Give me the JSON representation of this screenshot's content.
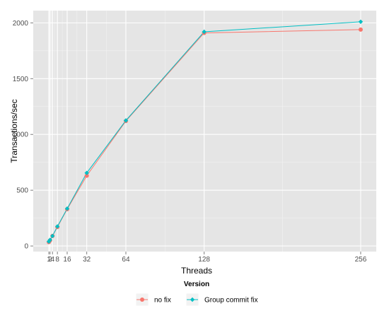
{
  "chart_data": {
    "type": "line",
    "title": "",
    "xlabel": "Threads",
    "ylabel": "Transactions/sec",
    "x": [
      1,
      2,
      4,
      8,
      16,
      32,
      64,
      128,
      256
    ],
    "xticks": [
      1,
      2,
      4,
      8,
      16,
      32,
      64,
      128,
      256
    ],
    "xtick_labels": [
      "1",
      "2",
      "4",
      "8",
      "16",
      "32",
      "64",
      "128",
      "256"
    ],
    "yticks": [
      0,
      500,
      1000,
      1500,
      2000
    ],
    "ytick_labels": [
      "0",
      "500",
      "1000",
      "1500",
      "2000"
    ],
    "xlim": [
      -11.75,
      268.75
    ],
    "ylim": [
      -50,
      2110
    ],
    "grid": true,
    "legend": {
      "title": "Version",
      "placement": "bottom"
    },
    "series": [
      {
        "name": "no fix",
        "color": "#F8766D",
        "values": [
          35,
          50,
          90,
          170,
          330,
          630,
          1120,
          1910,
          1940
        ]
      },
      {
        "name": "Group commit fix",
        "color": "#00BFC4",
        "values": [
          40,
          55,
          90,
          175,
          335,
          655,
          1125,
          1920,
          2010
        ]
      }
    ]
  }
}
